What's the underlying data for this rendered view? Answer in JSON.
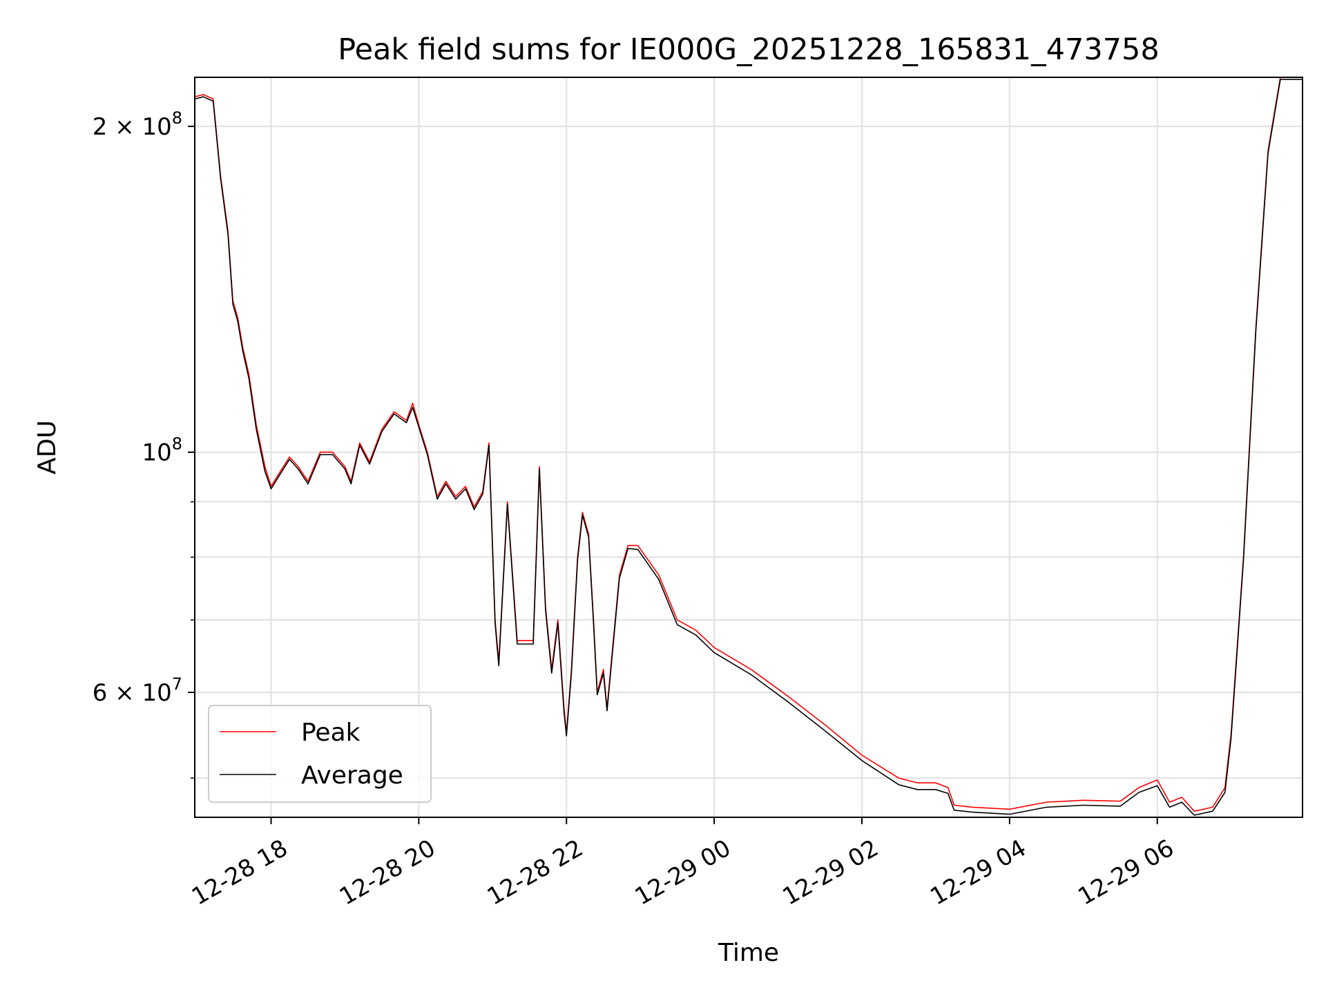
{
  "chart_data": {
    "type": "line",
    "title": "Peak field sums for IE000G_20251228_165831_473758",
    "xlabel": "Time",
    "ylabel": "ADU",
    "yscale": "log",
    "xlim": [
      "2025-12-28 16:58",
      "2025-12-29 07:58"
    ],
    "ylim": [
      46000000,
      222000000
    ],
    "grid": true,
    "legend_position": "lower-left",
    "x_ticks": [
      {
        "x": "2025-12-28 18:00",
        "label": "12-28 18"
      },
      {
        "x": "2025-12-28 20:00",
        "label": "12-28 20"
      },
      {
        "x": "2025-12-28 22:00",
        "label": "12-28 22"
      },
      {
        "x": "2025-12-29 00:00",
        "label": "12-29 00"
      },
      {
        "x": "2025-12-29 02:00",
        "label": "12-29 02"
      },
      {
        "x": "2025-12-29 04:00",
        "label": "12-29 04"
      },
      {
        "x": "2025-12-29 06:00",
        "label": "12-29 06"
      }
    ],
    "y_ticks": [
      {
        "y": 200000000,
        "base": "2 × 10",
        "exp": "8"
      },
      {
        "y": 100000000,
        "base": "10",
        "exp": "8"
      },
      {
        "y": 60000000,
        "base": "6 × 10",
        "exp": "7"
      }
    ],
    "y_minor_ticks": [
      50000000,
      70000000,
      80000000,
      90000000
    ],
    "series": [
      {
        "name": "Peak",
        "color": "#ff0000",
        "points": [
          [
            "2025-12-28 16:58",
            213000000
          ],
          [
            "2025-12-28 17:05",
            214000000
          ],
          [
            "2025-12-28 17:13",
            212000000
          ],
          [
            "2025-12-28 17:19",
            180000000
          ],
          [
            "2025-12-28 17:25",
            160000000
          ],
          [
            "2025-12-28 17:29",
            138000000
          ],
          [
            "2025-12-28 17:33",
            133000000
          ],
          [
            "2025-12-28 17:37",
            125000000
          ],
          [
            "2025-12-28 17:42",
            118000000
          ],
          [
            "2025-12-28 17:48",
            106000000
          ],
          [
            "2025-12-28 17:55",
            97000000
          ],
          [
            "2025-12-28 18:00",
            93000000
          ],
          [
            "2025-12-28 18:10",
            97000000
          ],
          [
            "2025-12-28 18:15",
            99000000
          ],
          [
            "2025-12-28 18:22",
            97000000
          ],
          [
            "2025-12-28 18:30",
            94000000
          ],
          [
            "2025-12-28 18:40",
            100000000
          ],
          [
            "2025-12-28 18:50",
            100000000
          ],
          [
            "2025-12-28 19:00",
            97000000
          ],
          [
            "2025-12-28 19:05",
            94000000
          ],
          [
            "2025-12-28 19:12",
            102000000
          ],
          [
            "2025-12-28 19:20",
            98000000
          ],
          [
            "2025-12-28 19:30",
            105000000
          ],
          [
            "2025-12-28 19:40",
            109000000
          ],
          [
            "2025-12-28 19:50",
            107000000
          ],
          [
            "2025-12-28 19:55",
            111000000
          ],
          [
            "2025-12-28 20:00",
            106000000
          ],
          [
            "2025-12-28 20:07",
            100000000
          ],
          [
            "2025-12-28 20:15",
            91000000
          ],
          [
            "2025-12-28 20:22",
            94000000
          ],
          [
            "2025-12-28 20:30",
            91000000
          ],
          [
            "2025-12-28 20:38",
            93000000
          ],
          [
            "2025-12-28 20:45",
            89000000
          ],
          [
            "2025-12-28 20:52",
            92000000
          ],
          [
            "2025-12-28 20:57",
            102000000
          ],
          [
            "2025-12-28 21:02",
            70000000
          ],
          [
            "2025-12-28 21:05",
            64000000
          ],
          [
            "2025-12-28 21:12",
            90000000
          ],
          [
            "2025-12-28 21:20",
            67000000
          ],
          [
            "2025-12-28 21:27",
            67000000
          ],
          [
            "2025-12-28 21:33",
            67000000
          ],
          [
            "2025-12-28 21:38",
            97000000
          ],
          [
            "2025-12-28 21:43",
            72000000
          ],
          [
            "2025-12-28 21:48",
            63000000
          ],
          [
            "2025-12-28 21:53",
            70000000
          ],
          [
            "2025-12-28 21:58",
            58000000
          ],
          [
            "2025-12-28 22:00",
            55000000
          ],
          [
            "2025-12-28 22:04",
            63000000
          ],
          [
            "2025-12-28 22:09",
            80000000
          ],
          [
            "2025-12-28 22:13",
            88000000
          ],
          [
            "2025-12-28 22:18",
            84000000
          ],
          [
            "2025-12-28 22:22",
            70000000
          ],
          [
            "2025-12-28 22:25",
            60000000
          ],
          [
            "2025-12-28 22:30",
            63000000
          ],
          [
            "2025-12-28 22:33",
            58000000
          ],
          [
            "2025-12-28 22:38",
            67000000
          ],
          [
            "2025-12-28 22:43",
            77000000
          ],
          [
            "2025-12-28 22:50",
            82000000
          ],
          [
            "2025-12-28 22:58",
            82000000
          ],
          [
            "2025-12-28 23:15",
            77000000
          ],
          [
            "2025-12-28 23:30",
            70000000
          ],
          [
            "2025-12-28 23:45",
            68500000
          ],
          [
            "2025-12-29 00:00",
            66000000
          ],
          [
            "2025-12-29 00:30",
            63000000
          ],
          [
            "2025-12-29 01:00",
            59500000
          ],
          [
            "2025-12-29 01:30",
            56000000
          ],
          [
            "2025-12-29 02:00",
            52500000
          ],
          [
            "2025-12-29 02:30",
            50000000
          ],
          [
            "2025-12-29 02:45",
            49500000
          ],
          [
            "2025-12-29 03:00",
            49500000
          ],
          [
            "2025-12-29 03:10",
            49000000
          ],
          [
            "2025-12-29 03:15",
            47200000
          ],
          [
            "2025-12-29 03:30",
            47000000
          ],
          [
            "2025-12-29 04:00",
            46800000
          ],
          [
            "2025-12-29 04:30",
            47500000
          ],
          [
            "2025-12-29 05:00",
            47700000
          ],
          [
            "2025-12-29 05:30",
            47600000
          ],
          [
            "2025-12-29 05:45",
            49000000
          ],
          [
            "2025-12-29 06:00",
            49800000
          ],
          [
            "2025-12-29 06:10",
            47500000
          ],
          [
            "2025-12-29 06:20",
            48000000
          ],
          [
            "2025-12-29 06:30",
            46600000
          ],
          [
            "2025-12-29 06:45",
            47000000
          ],
          [
            "2025-12-29 06:55",
            49000000
          ],
          [
            "2025-12-29 07:00",
            55000000
          ],
          [
            "2025-12-29 07:10",
            80000000
          ],
          [
            "2025-12-29 07:20",
            130000000
          ],
          [
            "2025-12-29 07:30",
            190000000
          ],
          [
            "2025-12-29 07:40",
            222000000
          ],
          [
            "2025-12-29 07:58",
            222000000
          ]
        ]
      },
      {
        "name": "Average",
        "color": "#000000",
        "points": [
          [
            "2025-12-28 16:58",
            212000000
          ],
          [
            "2025-12-28 17:05",
            213000000
          ],
          [
            "2025-12-28 17:13",
            211000000
          ],
          [
            "2025-12-28 17:19",
            179000000
          ],
          [
            "2025-12-28 17:25",
            159000000
          ],
          [
            "2025-12-28 17:29",
            137000000
          ],
          [
            "2025-12-28 17:33",
            132000000
          ],
          [
            "2025-12-28 17:37",
            124000000
          ],
          [
            "2025-12-28 17:42",
            117000000
          ],
          [
            "2025-12-28 17:48",
            105000000
          ],
          [
            "2025-12-28 17:55",
            96000000
          ],
          [
            "2025-12-28 18:00",
            92500000
          ],
          [
            "2025-12-28 18:10",
            96500000
          ],
          [
            "2025-12-28 18:15",
            98500000
          ],
          [
            "2025-12-28 18:22",
            96500000
          ],
          [
            "2025-12-28 18:30",
            93500000
          ],
          [
            "2025-12-28 18:40",
            99500000
          ],
          [
            "2025-12-28 18:50",
            99500000
          ],
          [
            "2025-12-28 19:00",
            96500000
          ],
          [
            "2025-12-28 19:05",
            93500000
          ],
          [
            "2025-12-28 19:12",
            101500000
          ],
          [
            "2025-12-28 19:20",
            97500000
          ],
          [
            "2025-12-28 19:30",
            104500000
          ],
          [
            "2025-12-28 19:40",
            108500000
          ],
          [
            "2025-12-28 19:50",
            106500000
          ],
          [
            "2025-12-28 19:55",
            110000000
          ],
          [
            "2025-12-28 20:00",
            105500000
          ],
          [
            "2025-12-28 20:07",
            99500000
          ],
          [
            "2025-12-28 20:15",
            90500000
          ],
          [
            "2025-12-28 20:22",
            93500000
          ],
          [
            "2025-12-28 20:30",
            90500000
          ],
          [
            "2025-12-28 20:38",
            92500000
          ],
          [
            "2025-12-28 20:45",
            88500000
          ],
          [
            "2025-12-28 20:52",
            91500000
          ],
          [
            "2025-12-28 20:57",
            101500000
          ],
          [
            "2025-12-28 21:02",
            69500000
          ],
          [
            "2025-12-28 21:05",
            63500000
          ],
          [
            "2025-12-28 21:12",
            89500000
          ],
          [
            "2025-12-28 21:20",
            66500000
          ],
          [
            "2025-12-28 21:27",
            66500000
          ],
          [
            "2025-12-28 21:33",
            66500000
          ],
          [
            "2025-12-28 21:38",
            96500000
          ],
          [
            "2025-12-28 21:43",
            71500000
          ],
          [
            "2025-12-28 21:48",
            62500000
          ],
          [
            "2025-12-28 21:53",
            69500000
          ],
          [
            "2025-12-28 21:58",
            57500000
          ],
          [
            "2025-12-28 22:00",
            54700000
          ],
          [
            "2025-12-28 22:04",
            62500000
          ],
          [
            "2025-12-28 22:09",
            79500000
          ],
          [
            "2025-12-28 22:13",
            87500000
          ],
          [
            "2025-12-28 22:18",
            83500000
          ],
          [
            "2025-12-28 22:22",
            69500000
          ],
          [
            "2025-12-28 22:25",
            59700000
          ],
          [
            "2025-12-28 22:30",
            62500000
          ],
          [
            "2025-12-28 22:33",
            57700000
          ],
          [
            "2025-12-28 22:38",
            66500000
          ],
          [
            "2025-12-28 22:43",
            76500000
          ],
          [
            "2025-12-28 22:50",
            81500000
          ],
          [
            "2025-12-28 22:58",
            81300000
          ],
          [
            "2025-12-28 23:15",
            76300000
          ],
          [
            "2025-12-28 23:30",
            69300000
          ],
          [
            "2025-12-28 23:45",
            67800000
          ],
          [
            "2025-12-29 00:00",
            65300000
          ],
          [
            "2025-12-29 00:30",
            62300000
          ],
          [
            "2025-12-29 01:00",
            58800000
          ],
          [
            "2025-12-29 01:30",
            55300000
          ],
          [
            "2025-12-29 02:00",
            51900000
          ],
          [
            "2025-12-29 02:30",
            49300000
          ],
          [
            "2025-12-29 02:45",
            48800000
          ],
          [
            "2025-12-29 03:00",
            48800000
          ],
          [
            "2025-12-29 03:10",
            48400000
          ],
          [
            "2025-12-29 03:15",
            46700000
          ],
          [
            "2025-12-29 03:30",
            46500000
          ],
          [
            "2025-12-29 04:00",
            46300000
          ],
          [
            "2025-12-29 04:30",
            47000000
          ],
          [
            "2025-12-29 05:00",
            47200000
          ],
          [
            "2025-12-29 05:30",
            47100000
          ],
          [
            "2025-12-29 05:45",
            48500000
          ],
          [
            "2025-12-29 06:00",
            49200000
          ],
          [
            "2025-12-29 06:10",
            47000000
          ],
          [
            "2025-12-29 06:20",
            47500000
          ],
          [
            "2025-12-29 06:30",
            46200000
          ],
          [
            "2025-12-29 06:45",
            46600000
          ],
          [
            "2025-12-29 06:55",
            48500000
          ],
          [
            "2025-12-29 07:00",
            54500000
          ],
          [
            "2025-12-29 07:10",
            79500000
          ],
          [
            "2025-12-29 07:20",
            129000000
          ],
          [
            "2025-12-29 07:30",
            189000000
          ],
          [
            "2025-12-29 07:40",
            221000000
          ],
          [
            "2025-12-29 07:58",
            221000000
          ]
        ]
      }
    ]
  }
}
